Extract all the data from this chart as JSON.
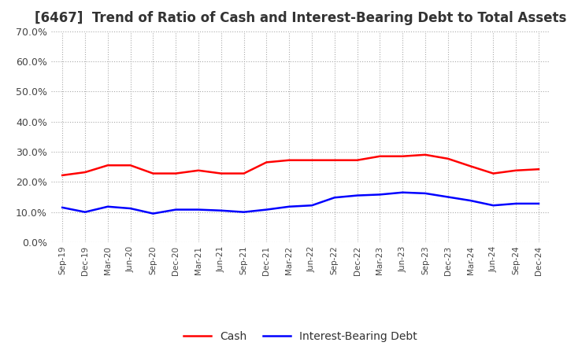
{
  "title": "[6467]  Trend of Ratio of Cash and Interest-Bearing Debt to Total Assets",
  "x_labels": [
    "Sep-19",
    "Dec-19",
    "Mar-20",
    "Jun-20",
    "Sep-20",
    "Dec-20",
    "Mar-21",
    "Jun-21",
    "Sep-21",
    "Dec-21",
    "Mar-22",
    "Jun-22",
    "Sep-22",
    "Dec-22",
    "Mar-23",
    "Jun-23",
    "Sep-23",
    "Dec-23",
    "Mar-24",
    "Jun-24",
    "Sep-24",
    "Dec-24"
  ],
  "cash": [
    0.222,
    0.232,
    0.255,
    0.255,
    0.228,
    0.228,
    0.238,
    0.228,
    0.228,
    0.265,
    0.272,
    0.272,
    0.272,
    0.272,
    0.285,
    0.285,
    0.29,
    0.277,
    0.252,
    0.228,
    0.238,
    0.242
  ],
  "debt": [
    0.115,
    0.1,
    0.118,
    0.112,
    0.095,
    0.108,
    0.108,
    0.105,
    0.1,
    0.108,
    0.118,
    0.122,
    0.148,
    0.155,
    0.158,
    0.165,
    0.162,
    0.15,
    0.138,
    0.122,
    0.128,
    0.128
  ],
  "cash_color": "#ff0000",
  "debt_color": "#0000ff",
  "ylim": [
    0.0,
    0.7
  ],
  "yticks": [
    0.0,
    0.1,
    0.2,
    0.3,
    0.4,
    0.5,
    0.6,
    0.7
  ],
  "background_color": "#ffffff",
  "grid_color": "#aaaaaa",
  "title_fontsize": 12,
  "legend_labels": [
    "Cash",
    "Interest-Bearing Debt"
  ]
}
